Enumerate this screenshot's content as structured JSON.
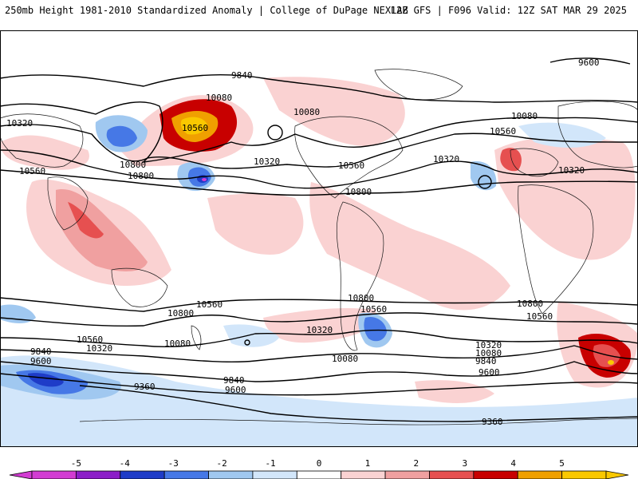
{
  "header": {
    "left": "250mb Height 1981-2010 Standardized Anomaly | College of DuPage NEXLAB",
    "right": "12Z GFS | F096 Valid: 12Z SAT MAR 29 2025"
  },
  "contour_labels": [
    "9600",
    "9840",
    "10080",
    "10320",
    "10560",
    "10800",
    "10080",
    "10560",
    "10080",
    "10320",
    "10560",
    "10320",
    "10800",
    "10560",
    "10320",
    "10800",
    "10560",
    "10320",
    "10560",
    "10800",
    "10800",
    "10800",
    "10560",
    "10560",
    "10800",
    "10320",
    "10560",
    "10320",
    "10080",
    "9840",
    "9600",
    "10080",
    "9840",
    "9600",
    "9360",
    "10080",
    "10320",
    "10080",
    "9840",
    "9600",
    "9360"
  ],
  "colorbar": {
    "ticks": [
      "-5",
      "-4",
      "-3",
      "-2",
      "-1",
      "0",
      "1",
      "2",
      "3",
      "4",
      "5"
    ],
    "colors": [
      "#d23cd2",
      "#8c1ec8",
      "#1e3cc8",
      "#4678e6",
      "#a0c8f0",
      "#d2e6fa",
      "#ffffff",
      "#fad2d2",
      "#f0a0a0",
      "#e65050",
      "#c80000",
      "#f0a000",
      "#fac800"
    ]
  }
}
